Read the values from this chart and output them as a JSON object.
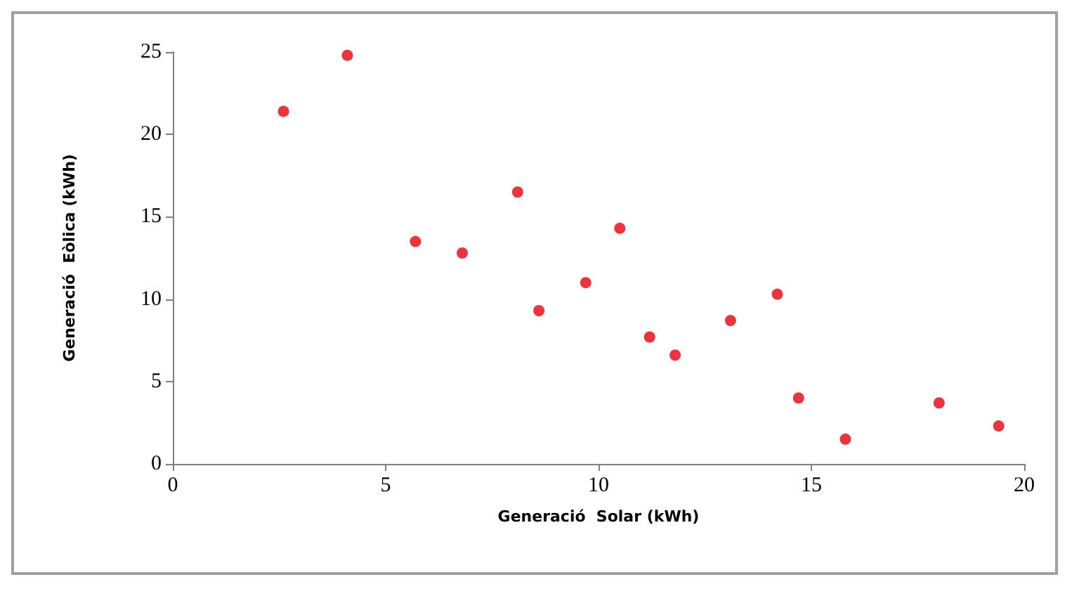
{
  "chart_data": {
    "type": "scatter",
    "xlabel": "Generació  Solar (kWh)",
    "ylabel": "Generació  Eòlica (kWh)",
    "x": [
      2.6,
      4.1,
      5.7,
      6.8,
      8.1,
      8.6,
      9.7,
      10.5,
      11.2,
      11.8,
      13.1,
      14.2,
      14.7,
      15.8,
      18.0,
      19.4
    ],
    "series": [
      {
        "color": "#e8000b",
        "values": [
          21.4,
          24.8,
          13.5,
          12.8,
          16.5,
          9.3,
          11.0,
          14.3,
          7.7,
          6.6,
          8.7,
          10.3,
          4.0,
          1.5,
          3.7,
          2.3
        ]
      }
    ],
    "xlim": [
      0,
      20
    ],
    "xticks": [
      0,
      5,
      10,
      15,
      20
    ],
    "ylim": [
      0,
      25
    ],
    "yticks": [
      0,
      5,
      10,
      15,
      20,
      25
    ],
    "grid": false,
    "marker": "circle"
  }
}
